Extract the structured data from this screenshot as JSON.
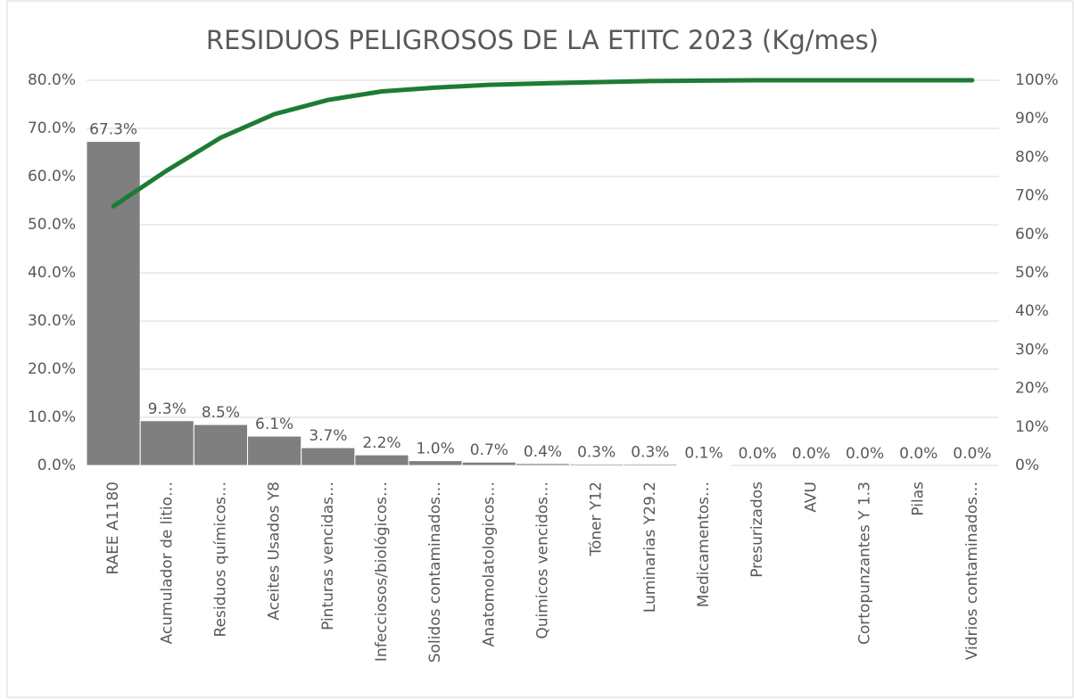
{
  "chart_data": {
    "type": "pareto",
    "title": "RESIDUOS PELIGROSOS DE LA ETITC 2023 (Kg/mes)",
    "categories": [
      "RAEE A1180",
      "Acumulador de litio…",
      "Residuos químicos…",
      "Aceites Usados Y8",
      "Pinturas vencidas…",
      "Infecciosos/biológicos…",
      "Solidos contaminados…",
      "Anatomolatologicos…",
      "Quimicos vencidos…",
      "Tóner Y12",
      "Luminarias Y29.2",
      "Medicamentos…",
      "Presurizados",
      "AVU",
      "Cortopunzantes Y 1.3",
      "Pilas",
      "Vidrios contaminados…"
    ],
    "series": [
      {
        "type": "bar",
        "color": "#7f7f7f",
        "values": [
          67.3,
          9.3,
          8.5,
          6.1,
          3.7,
          2.2,
          1.0,
          0.7,
          0.4,
          0.3,
          0.3,
          0.1,
          0.0,
          0.0,
          0.0,
          0.0,
          0.0
        ],
        "value_labels": [
          "67.3%",
          "9.3%",
          "8.5%",
          "6.1%",
          "3.7%",
          "2.2%",
          "1.0%",
          "0.7%",
          "0.4%",
          "0.3%",
          "0.3%",
          "0.1%",
          "0.0%",
          "0.0%",
          "0.0%",
          "0.0%",
          "0.0%"
        ]
      },
      {
        "type": "line",
        "axis": "y2",
        "color": "#1e7b34",
        "values": [
          67.3,
          76.6,
          85.1,
          91.2,
          94.9,
          97.1,
          98.1,
          98.8,
          99.2,
          99.5,
          99.8,
          99.9,
          100,
          100,
          100,
          100,
          100
        ]
      }
    ],
    "ylim": [
      0,
      80
    ],
    "yticks": [
      {
        "value": 0,
        "label": "0.0%"
      },
      {
        "value": 10,
        "label": "10.0%"
      },
      {
        "value": 20,
        "label": "20.0%"
      },
      {
        "value": 30,
        "label": "30.0%"
      },
      {
        "value": 40,
        "label": "40.0%"
      },
      {
        "value": 50,
        "label": "50.0%"
      },
      {
        "value": 60,
        "label": "60.0%"
      },
      {
        "value": 70,
        "label": "70.0%"
      },
      {
        "value": 80,
        "label": "80.0%"
      }
    ],
    "y2lim": [
      0,
      100
    ],
    "y2ticks": [
      {
        "value": 0,
        "label": "0%"
      },
      {
        "value": 10,
        "label": "10%"
      },
      {
        "value": 20,
        "label": "20%"
      },
      {
        "value": 30,
        "label": "30%"
      },
      {
        "value": 40,
        "label": "40%"
      },
      {
        "value": 50,
        "label": "50%"
      },
      {
        "value": 60,
        "label": "60%"
      },
      {
        "value": 70,
        "label": "70%"
      },
      {
        "value": 80,
        "label": "80%"
      },
      {
        "value": 90,
        "label": "90%"
      },
      {
        "value": 100,
        "label": "100%"
      }
    ],
    "grid": true
  }
}
